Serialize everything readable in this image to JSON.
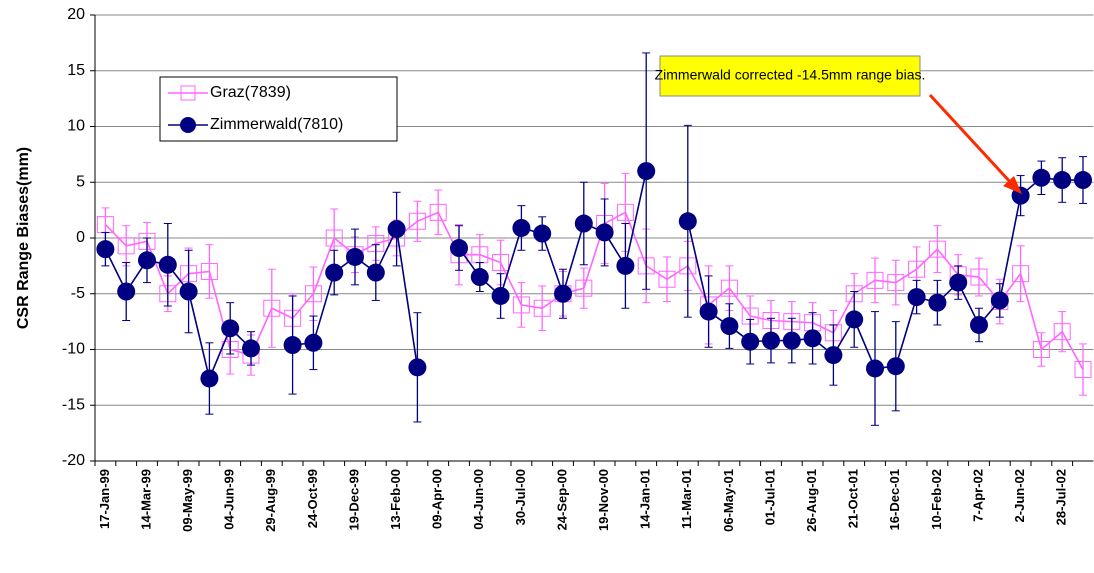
{
  "chart_data": {
    "type": "line",
    "y_label": "CSR Range Biases(mm)",
    "categories": [
      "17-Jan-99",
      null,
      "14-Mar-99",
      null,
      "09-May-99",
      null,
      "04-Jun-99",
      null,
      "29-Aug-99",
      null,
      "24-Oct-99",
      null,
      "19-Dec-99",
      null,
      "13-Feb-00",
      null,
      "09-Apr-00",
      null,
      "04-Jun-00",
      null,
      "30-Jul-00",
      null,
      "24-Sep-00",
      null,
      "19-Nov-00",
      null,
      "14-Jan-01",
      null,
      "11-Mar-01",
      null,
      "06-May-01",
      null,
      "01-Jul-01",
      null,
      "26-Aug-01",
      null,
      "21-Oct-01",
      null,
      "16-Dec-01",
      null,
      "10-Feb-02",
      null,
      "7-Apr-02",
      null,
      "2-Jun-02",
      null,
      "28-Jul-02",
      null
    ],
    "series": [
      {
        "name": "Graz(7839)",
        "color": "#ff66ff",
        "marker": "square",
        "values": [
          1.2,
          -0.7,
          -0.3,
          -5,
          -3.2,
          -3,
          -10,
          -10.5,
          -6.3,
          -7.2,
          -5,
          0,
          -1.5,
          -0.5,
          0,
          1.5,
          2.3,
          -1.5,
          -1.5,
          -2.2,
          -6,
          -6.3,
          -5,
          -4.5,
          1.3,
          2.3,
          -2.5,
          -3.7,
          -2.5,
          -6,
          -4.5,
          -7,
          -7.4,
          -7.5,
          -7.6,
          -8.5,
          -5,
          -3.8,
          -4,
          -2.8,
          -1,
          -3.3,
          -3.5,
          -5.7,
          -3.2,
          -10,
          -8.4,
          -11.8
        ],
        "errors": [
          1.5,
          1.8,
          1.7,
          1.6,
          2.3,
          2.4,
          2.2,
          1.8,
          3.5,
          2.2,
          2.4,
          2.6,
          1.6,
          1.5,
          1.6,
          1.8,
          2,
          2.7,
          1.8,
          2,
          2,
          2,
          2,
          1.8,
          3.6,
          3.5,
          3.3,
          2,
          2.2,
          3.5,
          2,
          1.8,
          1.8,
          1.8,
          1.8,
          2,
          1.8,
          2,
          2,
          2,
          2.1,
          1.8,
          1.7,
          2,
          2.5,
          1.5,
          1.8,
          2.3
        ]
      },
      {
        "name": "Zimmerwald(7810)",
        "color": "#000080",
        "marker": "circle",
        "values": [
          -1,
          -4.8,
          -2,
          -2.4,
          -4.8,
          -12.6,
          -8.1,
          -9.9,
          null,
          -9.6,
          -9.4,
          -3.1,
          -1.7,
          -3.1,
          0.8,
          -11.6,
          null,
          -0.9,
          -3.5,
          -5.2,
          0.9,
          0.4,
          -5,
          1.3,
          0.5,
          -2.5,
          6,
          null,
          1.5,
          -6.6,
          -7.9,
          -9.3,
          -9.2,
          -9.2,
          -9,
          -10.5,
          -7.3,
          -11.7,
          -11.5,
          -5.3,
          -5.8,
          -4,
          -7.8,
          -5.6,
          3.8,
          5.4,
          5.2,
          5.2
        ],
        "errors": [
          1.5,
          2.6,
          2,
          3.7,
          3.7,
          3.2,
          2.3,
          1.5,
          null,
          4.4,
          2.4,
          2,
          2.5,
          2.5,
          3.3,
          4.9,
          null,
          2,
          1.3,
          2,
          2,
          1.5,
          2.2,
          3.7,
          3,
          3.8,
          10.6,
          null,
          8.6,
          3.2,
          2,
          2,
          2,
          2,
          2.3,
          2.7,
          2.5,
          5.1,
          4,
          1.5,
          2,
          1.5,
          1.5,
          1.5,
          1.8,
          1.5,
          2,
          2.1
        ]
      }
    ],
    "ylim": [
      -20,
      20
    ],
    "yticks": [
      -20,
      -15,
      -10,
      -5,
      0,
      5,
      10,
      15,
      20
    ],
    "grid": true,
    "annotation": "Zimmerwald corrected -14.5mm range bias."
  }
}
